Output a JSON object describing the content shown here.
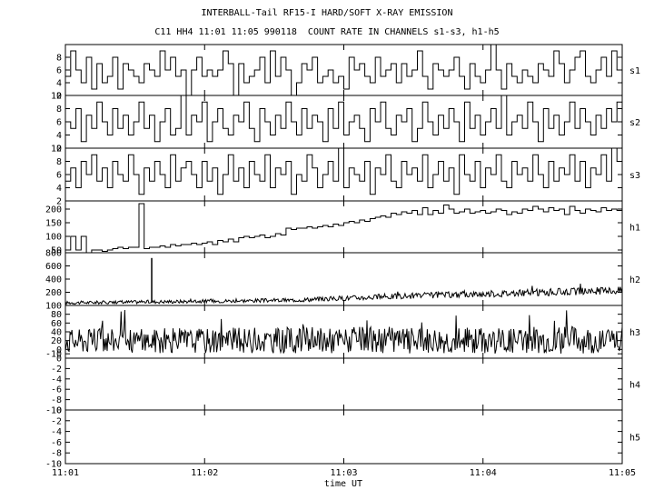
{
  "chart_data": {
    "type": "line",
    "title": "INTERBALL-Tail RF15-I HARD/SOFT X-RAY EMISSION",
    "subtitle": "C11 HH4 11:01 11:05 990118  COUNT RATE IN CHANNELS s1-s3, h1-h5",
    "xlabel": "time UT",
    "x_ticks": [
      "11:01",
      "11:02",
      "11:03",
      "11:04",
      "11:05"
    ],
    "x_range": [
      "11:01",
      "11:05"
    ],
    "grid": false,
    "panels": [
      {
        "name": "s1",
        "ylim": [
          2,
          10
        ],
        "y_ticks": [
          "2",
          "4",
          "6",
          "8"
        ],
        "style": "step",
        "values": [
          5,
          9,
          6,
          4,
          8,
          3,
          7,
          4,
          5,
          8,
          3,
          7,
          6,
          5,
          4,
          7,
          6,
          5,
          9,
          6,
          8,
          5,
          6,
          2,
          6,
          8,
          5,
          6,
          5,
          6,
          9,
          7,
          2,
          7,
          4,
          5,
          6,
          8,
          4,
          9,
          5,
          8,
          6,
          2,
          4,
          7,
          6,
          8,
          4,
          5,
          6,
          4,
          5,
          3,
          8,
          6,
          7,
          5,
          4,
          8,
          5,
          6,
          7,
          4,
          7,
          5,
          6,
          9,
          5,
          3,
          7,
          6,
          5,
          6,
          8,
          5,
          3,
          7,
          5,
          4,
          6,
          10,
          6,
          3,
          7,
          5,
          4,
          6,
          5,
          4,
          7,
          6,
          5,
          9,
          7,
          4,
          6,
          8,
          9,
          5,
          4,
          6,
          8,
          5,
          9,
          6
        ]
      },
      {
        "name": "s2",
        "ylim": [
          2,
          10
        ],
        "y_ticks": [
          "2",
          "4",
          "6",
          "8",
          "10"
        ],
        "style": "step",
        "values": [
          6,
          5,
          8,
          3,
          7,
          5,
          9,
          6,
          4,
          8,
          5,
          7,
          4,
          6,
          9,
          5,
          7,
          3,
          6,
          8,
          4,
          5,
          10,
          4,
          7,
          6,
          9,
          3,
          6,
          8,
          5,
          4,
          7,
          6,
          9,
          5,
          3,
          8,
          6,
          4,
          7,
          5,
          9,
          6,
          4,
          8,
          5,
          7,
          6,
          3,
          8,
          5,
          9,
          4,
          6,
          7,
          5,
          3,
          8,
          6,
          9,
          5,
          4,
          7,
          6,
          8,
          3,
          5,
          9,
          6,
          4,
          7,
          5,
          8,
          6,
          3,
          9,
          5,
          7,
          4,
          6,
          8,
          5,
          10,
          4,
          6,
          7,
          5,
          9,
          6,
          3,
          8,
          5,
          7,
          4,
          6,
          9,
          5,
          8,
          6,
          4,
          7,
          5,
          8,
          6,
          9
        ]
      },
      {
        "name": "s3",
        "ylim": [
          2,
          10
        ],
        "y_ticks": [
          "2",
          "4",
          "6",
          "8",
          "10"
        ],
        "style": "step",
        "values": [
          5,
          7,
          4,
          8,
          6,
          9,
          5,
          7,
          4,
          8,
          6,
          5,
          9,
          6,
          3,
          7,
          5,
          8,
          6,
          4,
          9,
          5,
          7,
          8,
          6,
          4,
          8,
          5,
          7,
          3,
          6,
          9,
          5,
          7,
          4,
          8,
          6,
          5,
          9,
          4,
          7,
          6,
          8,
          3,
          6,
          5,
          9,
          7,
          4,
          6,
          8,
          5,
          10,
          4,
          7,
          6,
          5,
          8,
          3,
          7,
          6,
          9,
          5,
          4,
          8,
          6,
          7,
          5,
          9,
          4,
          6,
          8,
          5,
          7,
          3,
          9,
          6,
          5,
          8,
          4,
          7,
          6,
          9,
          5,
          4,
          8,
          6,
          7,
          5,
          9,
          6,
          4,
          8,
          5,
          7,
          6,
          9,
          5,
          8,
          4,
          7,
          6,
          9,
          5,
          10,
          8
        ]
      },
      {
        "name": "h1",
        "ylim": [
          40,
          230
        ],
        "y_ticks": [
          "50",
          "100",
          "150",
          "200"
        ],
        "style": "step",
        "values": [
          50,
          100,
          50,
          100,
          40,
          50,
          50,
          45,
          50,
          55,
          60,
          55,
          60,
          60,
          220,
          55,
          60,
          60,
          65,
          60,
          70,
          65,
          70,
          70,
          75,
          70,
          75,
          80,
          70,
          85,
          80,
          90,
          80,
          95,
          100,
          95,
          100,
          105,
          95,
          100,
          110,
          105,
          130,
          125,
          130,
          130,
          135,
          130,
          135,
          140,
          135,
          145,
          140,
          150,
          155,
          150,
          160,
          155,
          165,
          170,
          175,
          170,
          185,
          180,
          190,
          185,
          195,
          180,
          205,
          180,
          195,
          185,
          215,
          200,
          185,
          190,
          200,
          185,
          190,
          195,
          185,
          190,
          200,
          195,
          180,
          190,
          185,
          200,
          195,
          210,
          200,
          190,
          205,
          195,
          200,
          180,
          210,
          195,
          185,
          200,
          195,
          190,
          205,
          195,
          200,
          195
        ]
      },
      {
        "name": "h2",
        "ylim": [
          0,
          800
        ],
        "y_ticks": [
          "200",
          "400",
          "600",
          "800"
        ],
        "style": "noise",
        "values": [
          {
            "t": 0.0,
            "level": 40,
            "spread": 25
          },
          {
            "t": 0.4,
            "level": 80,
            "spread": 30
          },
          {
            "t": 0.6,
            "level": 140,
            "spread": 45
          },
          {
            "t": 1.0,
            "level": 230,
            "spread": 60
          }
        ],
        "spike": {
          "t": 0.155,
          "value": 720
        }
      },
      {
        "name": "h3",
        "ylim": [
          -20,
          100
        ],
        "y_ticks": [
          "-10",
          "0",
          "20",
          "40",
          "60",
          "80",
          "100"
        ],
        "style": "noise",
        "values": [
          {
            "t": 0.0,
            "level": 20,
            "spread": 28
          },
          {
            "t": 1.0,
            "level": 22,
            "spread": 32
          }
        ],
        "spike": null
      },
      {
        "name": "h4",
        "ylim": [
          -10,
          0
        ],
        "y_ticks": [
          "-10",
          "-8",
          "-6",
          "-4",
          "-2",
          "0"
        ],
        "style": "empty",
        "values": []
      },
      {
        "name": "h5",
        "ylim": [
          -10,
          0
        ],
        "y_ticks": [
          "-10",
          "-8",
          "-6",
          "-4",
          "-2",
          "0"
        ],
        "style": "empty",
        "values": []
      }
    ]
  }
}
